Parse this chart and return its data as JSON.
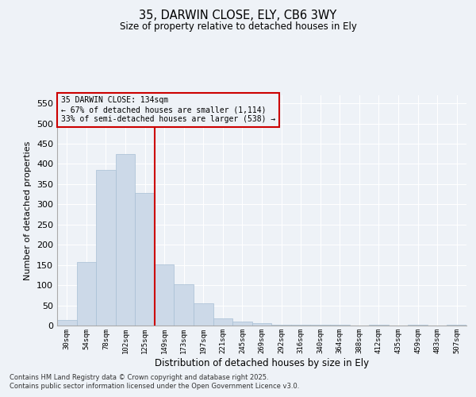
{
  "title1": "35, DARWIN CLOSE, ELY, CB6 3WY",
  "title2": "Size of property relative to detached houses in Ely",
  "xlabel": "Distribution of detached houses by size in Ely",
  "ylabel": "Number of detached properties",
  "bar_labels": [
    "30sqm",
    "54sqm",
    "78sqm",
    "102sqm",
    "125sqm",
    "149sqm",
    "173sqm",
    "197sqm",
    "221sqm",
    "245sqm",
    "269sqm",
    "292sqm",
    "316sqm",
    "340sqm",
    "364sqm",
    "388sqm",
    "412sqm",
    "435sqm",
    "459sqm",
    "483sqm",
    "507sqm"
  ],
  "bar_values": [
    13,
    157,
    385,
    425,
    328,
    152,
    103,
    55,
    18,
    10,
    5,
    2,
    2,
    1,
    1,
    0,
    2,
    0,
    1,
    0,
    2
  ],
  "bar_color": "#ccd9e8",
  "bar_edgecolor": "#a8bfd4",
  "vline_color": "#cc0000",
  "annotation_title": "35 DARWIN CLOSE: 134sqm",
  "annotation_line1": "← 67% of detached houses are smaller (1,114)",
  "annotation_line2": "33% of semi-detached houses are larger (538) →",
  "annotation_box_color": "#cc0000",
  "ylim": [
    0,
    570
  ],
  "yticks": [
    0,
    50,
    100,
    150,
    200,
    250,
    300,
    350,
    400,
    450,
    500,
    550
  ],
  "footer1": "Contains HM Land Registry data © Crown copyright and database right 2025.",
  "footer2": "Contains public sector information licensed under the Open Government Licence v3.0.",
  "bg_color": "#eef2f7"
}
